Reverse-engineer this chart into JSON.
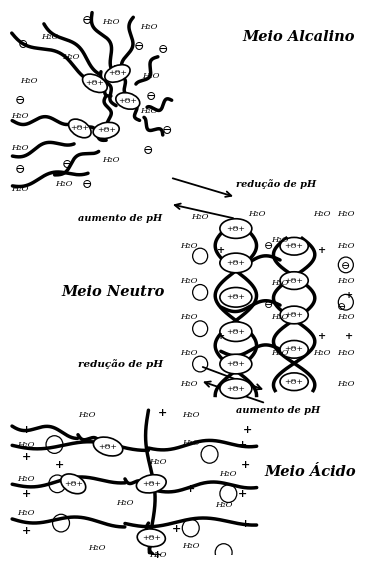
{
  "bg_color": "#ffffff",
  "labels": {
    "alcalino": "Meio Alcalino",
    "neutro": "Meio Neutro",
    "acido": "Meio Ácido",
    "reducao_pH_1": "redução de pH",
    "aumento_pH_1": "aumento de pH",
    "reducao_pH_2": "redução de pH",
    "aumento_pH_2": "aumento de pH"
  },
  "figsize": [
    3.78,
    5.63
  ],
  "dpi": 100
}
